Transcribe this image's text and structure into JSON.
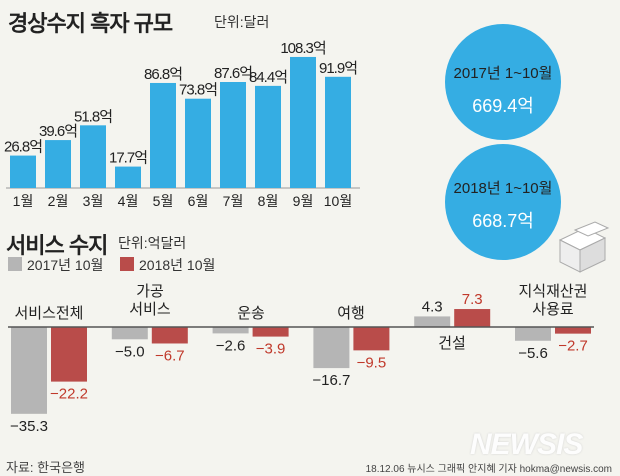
{
  "colors": {
    "blue": "#35ade3",
    "blue_overlap": "#0f8ccc",
    "gray": "#b5b5b5",
    "red": "#b94c4a",
    "red_text": "#c0392b"
  },
  "header": {
    "title": "경상수지 흑자 규모",
    "unit": "단위:달러"
  },
  "summary": {
    "y2017": {
      "label": "2017년 1~10월",
      "value": "669.4억"
    },
    "y2018": {
      "label": "2018년 1~10월",
      "value": "668.7억"
    }
  },
  "services_header": {
    "title": "서비스 수지",
    "unit": "단위:억달러"
  },
  "footer": {
    "source": "자료: 한국은행",
    "credit": "18.12.06  뉴시스 그래픽 안지혜 기자 hokma@newsis.com",
    "watermark": "NEWSIS"
  },
  "chart_data": [
    {
      "type": "bar",
      "title": "경상수지 흑자 규모",
      "unit": "단위:달러",
      "categories": [
        "1월",
        "2월",
        "3월",
        "4월",
        "5월",
        "6월",
        "7월",
        "8월",
        "9월",
        "10월"
      ],
      "values": [
        26.8,
        39.6,
        51.8,
        17.7,
        86.8,
        73.8,
        87.6,
        84.4,
        108.3,
        91.9
      ],
      "labels": [
        "26.8억",
        "39.6억",
        "51.8억",
        "17.7억",
        "86.8억",
        "73.8억",
        "87.6억",
        "84.4억",
        "108.3억",
        "91.9억"
      ],
      "color": "#35ade3",
      "grid": false
    },
    {
      "type": "bar",
      "title": "서비스 수지",
      "unit": "단위:억달러",
      "categories": [
        "서비스전체",
        "가공 서비스",
        "운송",
        "여행",
        "건설",
        "지식재산권 사용료"
      ],
      "series": [
        {
          "name": "2017년 10월",
          "color": "#b5b5b5",
          "values": [
            -35.3,
            -5.0,
            -2.6,
            -16.7,
            4.3,
            -5.6
          ],
          "labels": [
            "−35.3",
            "−5.0",
            "−2.6",
            "−16.7",
            "4.3",
            "−5.6"
          ]
        },
        {
          "name": "2018년 10월",
          "color": "#b94c4a",
          "values": [
            -22.2,
            -6.7,
            -3.9,
            -9.5,
            7.3,
            -2.7
          ],
          "labels": [
            "−22.2",
            "−6.7",
            "−3.9",
            "−9.5",
            "7.3",
            "−2.7"
          ]
        }
      ],
      "legend": "top-left",
      "grid": false
    }
  ]
}
